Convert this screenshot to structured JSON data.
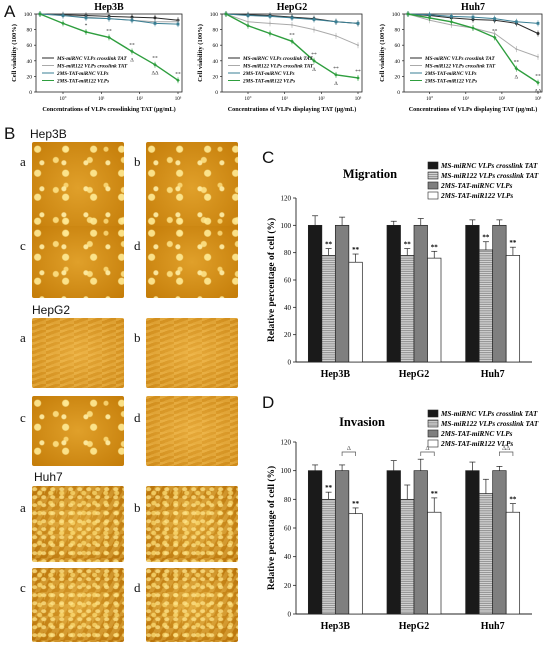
{
  "panel_letters": {
    "a": "A",
    "b": "B",
    "c": "C",
    "d": "D"
  },
  "micro_groups": [
    {
      "name": "Hep3B",
      "labels": [
        "a",
        "b",
        "c",
        "d"
      ]
    },
    {
      "name": "HepG2",
      "labels": [
        "a",
        "b",
        "c",
        "d"
      ]
    },
    {
      "name": "Huh7",
      "labels": [
        "a",
        "b",
        "c",
        "d"
      ]
    }
  ],
  "colors": {
    "black": "#1a1a1a",
    "silver": "#a8a8a8",
    "gray": "#7f7f7f",
    "white": "#ffffff",
    "line_dark": "#2a2a2a",
    "line_light": "#aaaaaa",
    "line_teal": "#3a7f94",
    "line_green": "#2e9e3e",
    "micro": "#d08a10"
  },
  "chart_data": [
    {
      "type": "line",
      "title": "Hep3B",
      "xlabel": "Concentrations of VLPs crosslinking TAT (μg/mL)",
      "ylabel": "Cell viability (100%)",
      "xtick_labels": [
        "10°",
        "10¹",
        "10²",
        "10³"
      ],
      "yticks": [
        0,
        20,
        40,
        60,
        80,
        100
      ],
      "ylim": [
        0,
        100
      ],
      "series": [
        {
          "name": "MS-miRNC VLPs crosslink TAT",
          "x": [
            0,
            1,
            2,
            3,
            4,
            5,
            6
          ],
          "y": [
            100,
            99,
            98,
            97,
            96,
            95,
            92
          ]
        },
        {
          "name": "MS-miR122 VLPs crosslink TAT",
          "x": [
            0,
            1,
            2,
            3,
            4,
            5,
            6
          ],
          "y": [
            100,
            98,
            96,
            94,
            92,
            90,
            90
          ]
        },
        {
          "name": "2MS-TAT-miRNC VLPs",
          "x": [
            0,
            1,
            2,
            3,
            4,
            5,
            6
          ],
          "y": [
            100,
            98,
            95,
            94,
            92,
            88,
            87
          ]
        },
        {
          "name": "2MS-TAT-miR122 VLPs",
          "x": [
            0,
            1,
            2,
            3,
            4,
            5,
            6
          ],
          "y": [
            100,
            88,
            77,
            70,
            52,
            35,
            15
          ]
        }
      ],
      "annotations": [
        {
          "x": 2,
          "text": "*"
        },
        {
          "x": 3,
          "text": "**"
        },
        {
          "x": 4,
          "text": "**"
        },
        {
          "x": 5,
          "text": "**"
        },
        {
          "x": 6,
          "text": "**"
        },
        {
          "x": 4,
          "text": "Δ"
        },
        {
          "x": 5,
          "text": "ΔΔ"
        }
      ]
    },
    {
      "type": "line",
      "title": "HepG2",
      "xlabel": "Concentrations of VLPs displaying TAT (μg/mL)",
      "ylabel": "Cell viability (100%)",
      "xtick_labels": [
        "10°",
        "10¹",
        "10²",
        "10³"
      ],
      "yticks": [
        0,
        20,
        40,
        60,
        80,
        100
      ],
      "ylim": [
        0,
        100
      ],
      "series": [
        {
          "name": "MS-miRNC VLPs crosslink TAT",
          "x": [
            0,
            1,
            2,
            3,
            4,
            5,
            6
          ],
          "y": [
            100,
            99,
            98,
            96,
            94,
            90,
            88
          ]
        },
        {
          "name": "MS-miR122 VLPs crosslink TAT",
          "x": [
            0,
            1,
            2,
            3,
            4,
            5,
            6
          ],
          "y": [
            100,
            90,
            88,
            86,
            80,
            72,
            60
          ]
        },
        {
          "name": "2MS-TAT-miRNC VLPs",
          "x": [
            0,
            1,
            2,
            3,
            4,
            5,
            6
          ],
          "y": [
            100,
            98,
            97,
            95,
            93,
            90,
            88
          ]
        },
        {
          "name": "2MS-TAT-miR122 VLPs",
          "x": [
            0,
            1,
            2,
            3,
            4,
            5,
            6
          ],
          "y": [
            100,
            85,
            75,
            65,
            40,
            22,
            18
          ]
        }
      ],
      "annotations": [
        {
          "x": 3,
          "text": "**"
        },
        {
          "x": 4,
          "text": "**"
        },
        {
          "x": 5,
          "text": "**"
        },
        {
          "x": 6,
          "text": "**"
        },
        {
          "x": 4,
          "text": "Δ"
        },
        {
          "x": 5,
          "text": "Δ"
        }
      ]
    },
    {
      "type": "line",
      "title": "Huh7",
      "xlabel": "Concentrations of VLPs displaying TAT (μg/mL)",
      "ylabel": "Cell viability (100%)",
      "xtick_labels": [
        "10°",
        "10¹",
        "10²",
        "10³"
      ],
      "yticks": [
        0,
        20,
        40,
        60,
        80,
        100
      ],
      "ylim": [
        0,
        100
      ],
      "series": [
        {
          "name": "MS-miRNC VLPs crosslink TAT",
          "x": [
            0,
            1,
            2,
            3,
            4,
            5,
            6
          ],
          "y": [
            100,
            98,
            95,
            93,
            92,
            88,
            75
          ]
        },
        {
          "name": "MS-miR122 VLPs crosslink TAT",
          "x": [
            0,
            1,
            2,
            3,
            4,
            5,
            6
          ],
          "y": [
            100,
            92,
            86,
            82,
            75,
            55,
            45
          ]
        },
        {
          "name": "2MS-TAT-miRNC VLPs",
          "x": [
            0,
            1,
            2,
            3,
            4,
            5,
            6
          ],
          "y": [
            100,
            99,
            97,
            96,
            94,
            90,
            88
          ]
        },
        {
          "name": "2MS-TAT-miR122 VLPs",
          "x": [
            0,
            1,
            2,
            3,
            4,
            5,
            6
          ],
          "y": [
            100,
            95,
            90,
            82,
            70,
            30,
            12
          ]
        }
      ],
      "annotations": [
        {
          "x": 4,
          "text": "**"
        },
        {
          "x": 5,
          "text": "**"
        },
        {
          "x": 6,
          "text": "**"
        },
        {
          "x": 5,
          "text": "Δ"
        },
        {
          "x": 6,
          "text": "ΔΔ"
        }
      ]
    },
    {
      "type": "bar",
      "title": "Migration",
      "ylabel": "Relative percentage of cell (%)",
      "categories": [
        "Hep3B",
        "HepG2",
        "Huh7"
      ],
      "yticks": [
        0,
        20,
        40,
        60,
        80,
        100,
        120
      ],
      "ylim": [
        0,
        120
      ],
      "series": [
        {
          "name": "MS-miRNC VLPs crosslink TAT",
          "values": [
            100,
            100,
            100
          ],
          "errors": [
            7,
            3,
            4
          ]
        },
        {
          "name": "MS-miR122 VLPs crosslink TAT",
          "values": [
            78,
            78,
            82
          ],
          "errors": [
            5,
            5,
            6
          ]
        },
        {
          "name": "2MS-TAT-miRNC VLPs",
          "values": [
            100,
            100,
            100
          ],
          "errors": [
            6,
            5,
            4
          ]
        },
        {
          "name": "2MS-TAT-miR122 VLPs",
          "values": [
            73,
            76,
            78
          ],
          "errors": [
            6,
            5,
            6
          ]
        }
      ],
      "annotations": [
        {
          "category": "Hep3B",
          "series": 1,
          "text": "**"
        },
        {
          "category": "Hep3B",
          "series": 3,
          "text": "**"
        },
        {
          "category": "HepG2",
          "series": 1,
          "text": "**"
        },
        {
          "category": "HepG2",
          "series": 3,
          "text": "**"
        },
        {
          "category": "Huh7",
          "series": 1,
          "text": "**"
        },
        {
          "category": "Huh7",
          "series": 3,
          "text": "**"
        }
      ]
    },
    {
      "type": "bar",
      "title": "Invasion",
      "ylabel": "Relative percentage of cell (%)",
      "categories": [
        "Hep3B",
        "HepG2",
        "Huh7"
      ],
      "yticks": [
        0,
        20,
        40,
        60,
        80,
        100,
        120
      ],
      "ylim": [
        0,
        120
      ],
      "series": [
        {
          "name": "MS-miRNC VLPs crosslink TAT",
          "values": [
            100,
            100,
            100
          ],
          "errors": [
            4,
            7,
            6
          ]
        },
        {
          "name": "MS-miR122 VLPs crosslink TAT",
          "values": [
            80,
            80,
            84
          ],
          "errors": [
            5,
            10,
            10
          ]
        },
        {
          "name": "2MS-TAT-miRNC VLPs",
          "values": [
            100,
            100,
            100
          ],
          "errors": [
            4,
            8,
            3
          ]
        },
        {
          "name": "2MS-TAT-miR122 VLPs",
          "values": [
            70,
            71,
            71
          ],
          "errors": [
            4,
            10,
            6
          ]
        }
      ],
      "annotations": [
        {
          "category": "Hep3B",
          "series": 1,
          "text": "**"
        },
        {
          "category": "Hep3B",
          "series": 3,
          "text": "**"
        },
        {
          "category": "HepG2",
          "series": 3,
          "text": "**"
        },
        {
          "category": "Huh7",
          "series": 3,
          "text": "**"
        }
      ],
      "brackets": [
        {
          "category": "Hep3B",
          "text": "Δ"
        },
        {
          "category": "HepG2",
          "text": "Δ"
        },
        {
          "category": "Huh7",
          "text": "ΔΔ"
        }
      ]
    }
  ]
}
